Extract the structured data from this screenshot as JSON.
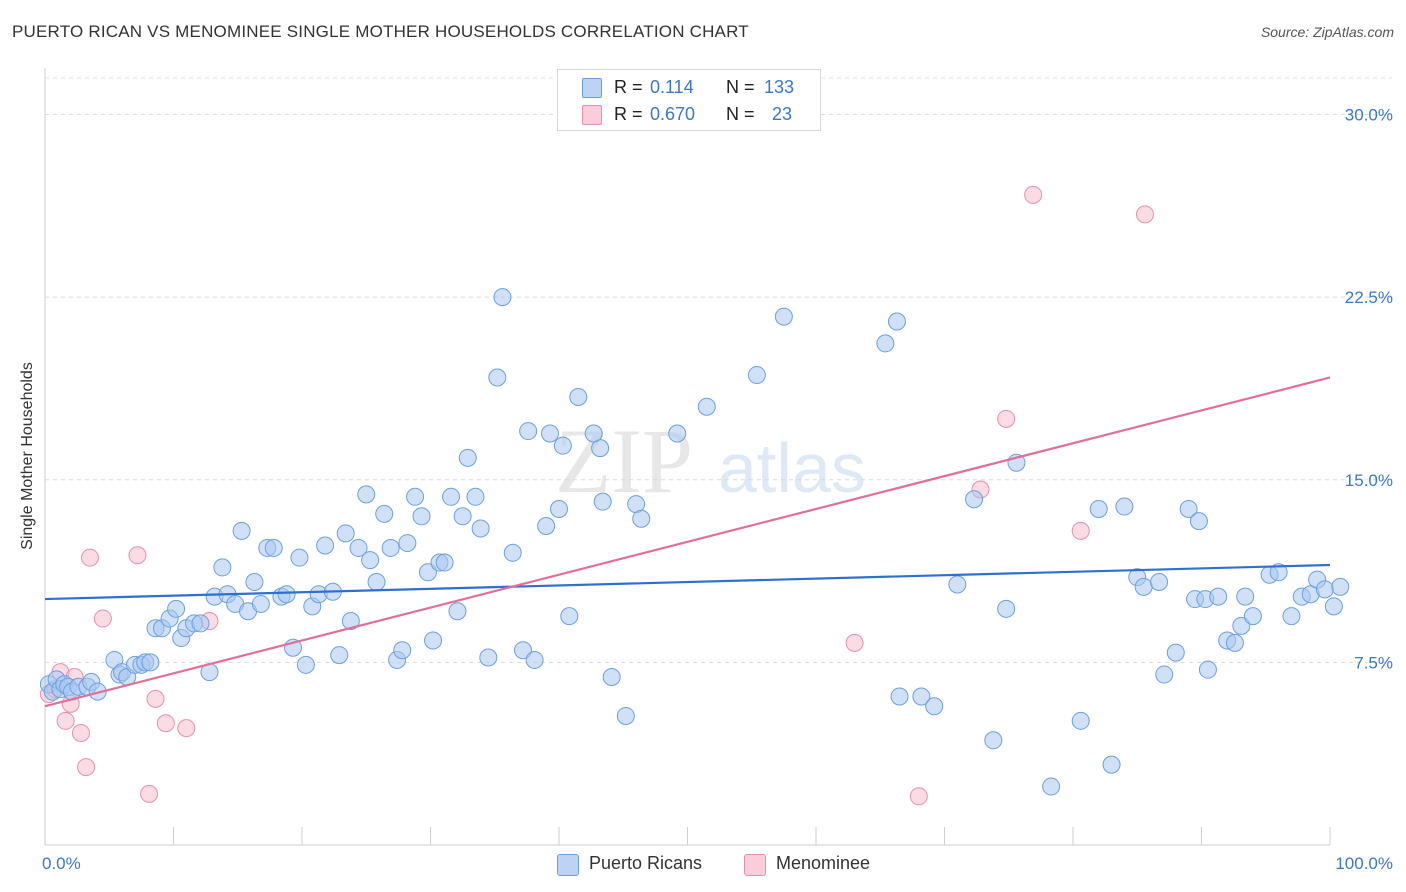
{
  "title": "PUERTO RICAN VS MENOMINEE SINGLE MOTHER HOUSEHOLDS CORRELATION CHART",
  "source": "Source: ZipAtlas.com",
  "watermark": {
    "zip": "ZIP",
    "atlas": "atlas"
  },
  "legend": {
    "rows": [
      {
        "r_label": "R =",
        "r_value": "0.114",
        "n_label": "N =",
        "n_value": "133"
      },
      {
        "r_label": "R =",
        "r_value": "0.670",
        "n_label": "N =",
        "n_value": "23"
      }
    ]
  },
  "bottom_legend": {
    "series1": "Puerto Ricans",
    "series2": "Menominee"
  },
  "colors": {
    "blue_fill": "#a9c8f0",
    "blue_stroke": "#6d9fe0",
    "blue_line": "#2f6fd0",
    "pink_fill": "#f7c0d0",
    "pink_stroke": "#e890ad",
    "pink_line": "#e0709a",
    "accent": "#3b78c9"
  },
  "chart_data": {
    "type": "scatter",
    "title": "PUERTO RICAN VS MENOMINEE SINGLE MOTHER HOUSEHOLDS CORRELATION CHART",
    "xlabel": "",
    "ylabel": "Single Mother Households",
    "xlim": [
      0,
      100
    ],
    "ylim": [
      0,
      31.5
    ],
    "x_tick_labels": [
      "0.0%",
      "100.0%"
    ],
    "y_ticks": [
      7.5,
      15.0,
      22.5,
      30.0
    ],
    "y_tick_labels": [
      "7.5%",
      "15.0%",
      "22.5%",
      "30.0%"
    ],
    "grid": true,
    "series": [
      {
        "name": "Puerto Ricans",
        "r": 0.114,
        "n": 133,
        "trend": {
          "x": [
            0,
            100
          ],
          "y": [
            10.1,
            11.5
          ]
        },
        "points": [
          [
            0.3,
            6.6
          ],
          [
            0.6,
            6.3
          ],
          [
            0.9,
            6.8
          ],
          [
            1.2,
            6.4
          ],
          [
            1.5,
            6.6
          ],
          [
            1.8,
            6.5
          ],
          [
            2.1,
            6.3
          ],
          [
            2.6,
            6.5
          ],
          [
            3.3,
            6.5
          ],
          [
            3.6,
            6.7
          ],
          [
            4.1,
            6.3
          ],
          [
            5.4,
            7.6
          ],
          [
            5.8,
            7.0
          ],
          [
            6.0,
            7.1
          ],
          [
            6.4,
            6.9
          ],
          [
            7.0,
            7.4
          ],
          [
            7.5,
            7.4
          ],
          [
            7.8,
            7.5
          ],
          [
            8.2,
            7.5
          ],
          [
            8.6,
            8.9
          ],
          [
            9.1,
            8.9
          ],
          [
            9.7,
            9.3
          ],
          [
            10.2,
            9.7
          ],
          [
            10.6,
            8.5
          ],
          [
            11.0,
            8.9
          ],
          [
            11.6,
            9.1
          ],
          [
            12.1,
            9.1
          ],
          [
            12.8,
            7.1
          ],
          [
            13.2,
            10.2
          ],
          [
            13.8,
            11.4
          ],
          [
            14.2,
            10.3
          ],
          [
            14.8,
            9.9
          ],
          [
            15.3,
            12.9
          ],
          [
            15.8,
            9.6
          ],
          [
            16.3,
            10.8
          ],
          [
            16.8,
            9.9
          ],
          [
            17.3,
            12.2
          ],
          [
            17.8,
            12.2
          ],
          [
            18.4,
            10.2
          ],
          [
            18.8,
            10.3
          ],
          [
            19.3,
            8.1
          ],
          [
            19.8,
            11.8
          ],
          [
            20.3,
            7.4
          ],
          [
            20.8,
            9.8
          ],
          [
            21.3,
            10.3
          ],
          [
            21.8,
            12.3
          ],
          [
            22.4,
            10.4
          ],
          [
            22.9,
            7.8
          ],
          [
            23.4,
            12.8
          ],
          [
            23.8,
            9.2
          ],
          [
            24.4,
            12.2
          ],
          [
            25.0,
            14.4
          ],
          [
            25.3,
            11.7
          ],
          [
            25.8,
            10.8
          ],
          [
            26.4,
            13.6
          ],
          [
            26.9,
            12.2
          ],
          [
            27.4,
            7.6
          ],
          [
            27.8,
            8.0
          ],
          [
            28.2,
            12.4
          ],
          [
            28.8,
            14.3
          ],
          [
            29.3,
            13.5
          ],
          [
            29.8,
            11.2
          ],
          [
            30.2,
            8.4
          ],
          [
            30.7,
            11.6
          ],
          [
            31.1,
            11.6
          ],
          [
            31.6,
            14.3
          ],
          [
            32.1,
            9.6
          ],
          [
            32.5,
            13.5
          ],
          [
            32.9,
            15.9
          ],
          [
            33.5,
            14.3
          ],
          [
            33.9,
            13.0
          ],
          [
            34.5,
            7.7
          ],
          [
            35.2,
            19.2
          ],
          [
            35.6,
            22.5
          ],
          [
            36.4,
            12.0
          ],
          [
            37.2,
            8.0
          ],
          [
            37.6,
            17.0
          ],
          [
            38.1,
            7.6
          ],
          [
            39.0,
            13.1
          ],
          [
            39.3,
            16.9
          ],
          [
            40.0,
            13.8
          ],
          [
            40.3,
            16.4
          ],
          [
            40.8,
            9.4
          ],
          [
            41.5,
            18.4
          ],
          [
            43.2,
            16.3
          ],
          [
            42.7,
            16.9
          ],
          [
            43.4,
            14.1
          ],
          [
            44.1,
            6.9
          ],
          [
            45.2,
            5.3
          ],
          [
            46.0,
            14.0
          ],
          [
            46.4,
            13.4
          ],
          [
            49.2,
            16.9
          ],
          [
            51.5,
            18.0
          ],
          [
            55.4,
            19.3
          ],
          [
            57.5,
            21.7
          ],
          [
            65.4,
            20.6
          ],
          [
            66.3,
            21.5
          ],
          [
            66.5,
            6.1
          ],
          [
            68.2,
            6.1
          ],
          [
            69.2,
            5.7
          ],
          [
            71.0,
            10.7
          ],
          [
            72.3,
            14.2
          ],
          [
            73.8,
            4.3
          ],
          [
            74.8,
            9.7
          ],
          [
            75.6,
            15.7
          ],
          [
            78.3,
            2.4
          ],
          [
            80.6,
            5.1
          ],
          [
            82.0,
            13.8
          ],
          [
            83.0,
            3.3
          ],
          [
            84.0,
            13.9
          ],
          [
            85.0,
            11.0
          ],
          [
            85.5,
            10.6
          ],
          [
            86.7,
            10.8
          ],
          [
            87.1,
            7.0
          ],
          [
            88.0,
            7.9
          ],
          [
            89.0,
            13.8
          ],
          [
            89.5,
            10.1
          ],
          [
            89.8,
            13.3
          ],
          [
            90.3,
            10.1
          ],
          [
            90.5,
            7.2
          ],
          [
            91.3,
            10.2
          ],
          [
            92.0,
            8.4
          ],
          [
            92.6,
            8.3
          ],
          [
            93.1,
            9.0
          ],
          [
            93.4,
            10.2
          ],
          [
            94.0,
            9.4
          ],
          [
            95.3,
            11.1
          ],
          [
            96.0,
            11.2
          ],
          [
            97.0,
            9.4
          ],
          [
            97.8,
            10.2
          ],
          [
            98.5,
            10.3
          ],
          [
            99.0,
            10.9
          ],
          [
            99.6,
            10.5
          ],
          [
            100.3,
            9.8
          ],
          [
            100.8,
            10.6
          ]
        ]
      },
      {
        "name": "Menominee",
        "r": 0.67,
        "n": 23,
        "trend": {
          "x": [
            0,
            100
          ],
          "y": [
            5.7,
            19.2
          ]
        },
        "points": [
          [
            0.3,
            6.2
          ],
          [
            0.8,
            6.4
          ],
          [
            1.2,
            7.1
          ],
          [
            1.6,
            5.1
          ],
          [
            2.0,
            5.8
          ],
          [
            2.3,
            6.9
          ],
          [
            2.8,
            4.6
          ],
          [
            3.2,
            3.2
          ],
          [
            3.5,
            11.8
          ],
          [
            4.5,
            9.3
          ],
          [
            7.2,
            11.9
          ],
          [
            8.1,
            2.1
          ],
          [
            8.6,
            6.0
          ],
          [
            9.4,
            5.0
          ],
          [
            11.0,
            4.8
          ],
          [
            12.8,
            9.2
          ],
          [
            63.0,
            8.3
          ],
          [
            68.0,
            2.0
          ],
          [
            72.8,
            14.6
          ],
          [
            74.8,
            17.5
          ],
          [
            76.9,
            26.7
          ],
          [
            80.6,
            12.9
          ],
          [
            85.6,
            25.9
          ]
        ]
      }
    ]
  }
}
